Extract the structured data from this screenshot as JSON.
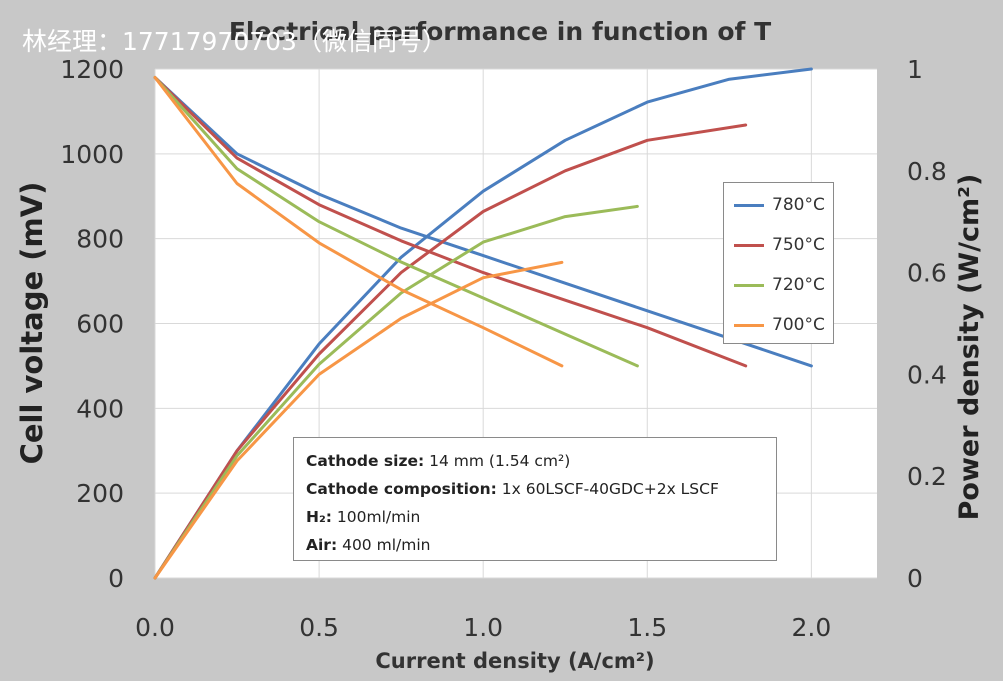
{
  "chart_data": {
    "type": "line",
    "title": "Electrical performance in function of T",
    "xlabel": "Current density (A/cm²)",
    "ylabel": "Cell voltage (mV)",
    "y2label": "Power density (W/cm²)",
    "xlim": [
      0,
      2.2
    ],
    "ylim": [
      0,
      1200
    ],
    "y2lim": [
      0,
      1
    ],
    "x_ticks": [
      "0.0",
      "0.5",
      "1.0",
      "1.5",
      "2.0"
    ],
    "y_ticks": [
      "0",
      "200",
      "400",
      "600",
      "800",
      "1000",
      "1200"
    ],
    "y2_ticks": [
      "0",
      "0.2",
      "0.4",
      "0.6",
      "0.8",
      "1"
    ],
    "grid": true,
    "legend_position": "right",
    "series": [
      {
        "name": "780°C",
        "color": "#4a7ebf",
        "voltage": {
          "x": [
            0,
            0.25,
            0.5,
            0.75,
            1.0,
            1.25,
            1.5,
            1.75,
            2.0
          ],
          "y": [
            1180,
            1000,
            905,
            825,
            760,
            695,
            630,
            565,
            500
          ]
        },
        "power": {
          "x": [
            0,
            0.25,
            0.5,
            0.75,
            1.0,
            1.25,
            1.5,
            1.75,
            2.0
          ],
          "y": [
            0,
            0.25,
            0.46,
            0.63,
            0.76,
            0.86,
            0.935,
            0.98,
            1.0
          ]
        }
      },
      {
        "name": "750°C",
        "color": "#c0504d",
        "voltage": {
          "x": [
            0,
            0.25,
            0.5,
            0.75,
            1.0,
            1.25,
            1.5,
            1.8
          ],
          "y": [
            1180,
            990,
            880,
            795,
            720,
            655,
            590,
            500
          ]
        },
        "power": {
          "x": [
            0,
            0.25,
            0.5,
            0.75,
            1.0,
            1.25,
            1.5,
            1.8
          ],
          "y": [
            0,
            0.25,
            0.44,
            0.6,
            0.72,
            0.8,
            0.86,
            0.89
          ]
        }
      },
      {
        "name": "720°C",
        "color": "#9bbb59",
        "voltage": {
          "x": [
            0,
            0.25,
            0.5,
            0.75,
            1.0,
            1.25,
            1.47
          ],
          "y": [
            1180,
            965,
            840,
            745,
            660,
            575,
            500
          ]
        },
        "power": {
          "x": [
            0,
            0.25,
            0.5,
            0.75,
            1.0,
            1.25,
            1.47
          ],
          "y": [
            0,
            0.24,
            0.42,
            0.56,
            0.66,
            0.71,
            0.73
          ]
        }
      },
      {
        "name": "700°C",
        "color": "#f79646",
        "voltage": {
          "x": [
            0,
            0.25,
            0.5,
            0.75,
            1.0,
            1.24
          ],
          "y": [
            1180,
            930,
            790,
            680,
            590,
            500
          ]
        },
        "power": {
          "x": [
            0,
            0.25,
            0.5,
            0.75,
            1.0,
            1.24
          ],
          "y": [
            0,
            0.23,
            0.4,
            0.51,
            0.59,
            0.62
          ]
        }
      }
    ],
    "annotation": [
      {
        "label": "Cathode size:",
        "value": " 14 mm (1.54 cm²)"
      },
      {
        "label": "Cathode composition:",
        "value": " 1x 60LSCF-40GDC+2x LSCF"
      },
      {
        "label": "H₂:",
        "value": " 100ml/min"
      },
      {
        "label": "Air:",
        "value": " 400 ml/min"
      }
    ]
  },
  "watermark": "林经理：17717970703（微信同号）"
}
